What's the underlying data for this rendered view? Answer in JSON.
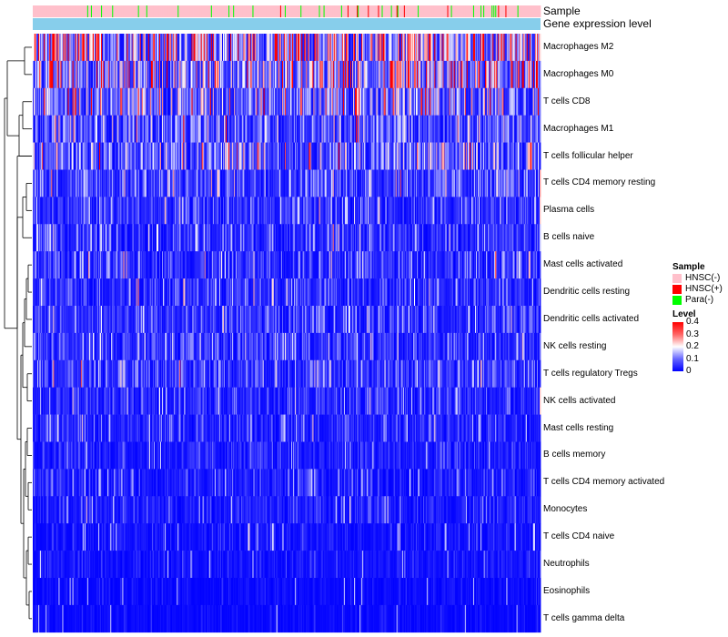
{
  "chart_data": {
    "type": "heatmap",
    "title": "",
    "annotations": [
      {
        "name": "Sample",
        "colors": {
          "HNSC(-)": "#FFC0CB",
          "HNSC(+)": "#FF0000",
          "Para(-)": "#00FF00"
        }
      },
      {
        "name": "Gene expression level",
        "color": "#87CEEB"
      }
    ],
    "rows": [
      {
        "label": "Macrophages M2",
        "mean": 0.2
      },
      {
        "label": "Macrophages M0",
        "mean": 0.16
      },
      {
        "label": "T cells CD8",
        "mean": 0.13
      },
      {
        "label": "Macrophages M1",
        "mean": 0.08
      },
      {
        "label": "T cells follicular helper",
        "mean": 0.1
      },
      {
        "label": "T cells CD4 memory resting",
        "mean": 0.07
      },
      {
        "label": "Plasma cells",
        "mean": 0.05
      },
      {
        "label": "B cells naive",
        "mean": 0.05
      },
      {
        "label": "Mast cells activated",
        "mean": 0.05
      },
      {
        "label": "Dendritic cells resting",
        "mean": 0.05
      },
      {
        "label": "Dendritic cells activated",
        "mean": 0.05
      },
      {
        "label": "NK cells resting",
        "mean": 0.05
      },
      {
        "label": "T cells regulatory  Tregs",
        "mean": 0.06
      },
      {
        "label": "NK cells activated",
        "mean": 0.04
      },
      {
        "label": "Mast cells resting",
        "mean": 0.04
      },
      {
        "label": "B cells memory",
        "mean": 0.03
      },
      {
        "label": "T cells CD4 memory activated",
        "mean": 0.03
      },
      {
        "label": "Monocytes",
        "mean": 0.03
      },
      {
        "label": "T cells CD4 naive",
        "mean": 0.02
      },
      {
        "label": "Neutrophils",
        "mean": 0.02
      },
      {
        "label": "Eosinophils",
        "mean": 0.01
      },
      {
        "label": "T cells gamma delta",
        "mean": 0.01
      }
    ],
    "columns_count": 550,
    "legend": {
      "sample_title": "Sample",
      "sample_items": [
        {
          "label": "HNSC(-)",
          "color": "#FFC0CB"
        },
        {
          "label": "HNSC(+)",
          "color": "#FF0000"
        },
        {
          "label": "Para(-)",
          "color": "#00FF00"
        }
      ],
      "level_title": "Level",
      "level_ticks": [
        "0.4",
        "0.3",
        "0.2",
        "0.1",
        "0"
      ],
      "level_range": [
        0,
        0.4
      ]
    },
    "colorscale": [
      "#0000FF",
      "#FFFFFF",
      "#FF0000"
    ]
  }
}
